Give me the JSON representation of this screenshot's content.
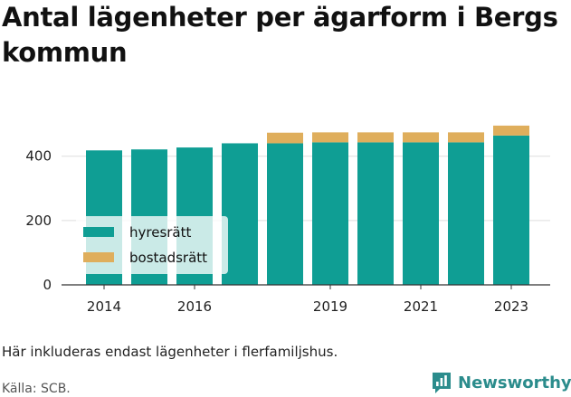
{
  "title": "Antal lägenheter per ägarform i Bergs kommun",
  "note": "Här inkluderas endast lägenheter i flerfamiljshus.",
  "source": "Källa: SCB.",
  "brand": {
    "name": "Newsworthy",
    "icon": "newsworthy-logo-icon",
    "color": "#2b8c8c"
  },
  "colors": {
    "hyresratt": "#0f9e94",
    "bostadsratt": "#dfae5c",
    "grid": "#dddddd"
  },
  "chart_data": {
    "type": "bar",
    "stacked": true,
    "title": "Antal lägenheter per ägarform i Bergs kommun",
    "xlabel": "",
    "ylabel": "",
    "categories": [
      "2014",
      "2015",
      "2016",
      "2017",
      "2018",
      "2019",
      "2020",
      "2021",
      "2022",
      "2023"
    ],
    "x_tick_labels": [
      "2014",
      "2016",
      "2019",
      "2021",
      "2023"
    ],
    "y_ticks": [
      0,
      200,
      400
    ],
    "ylim": [
      0,
      520
    ],
    "grid": true,
    "legend_position": "bottom-left",
    "series": [
      {
        "name": "hyresrätt",
        "color": "#0f9e94",
        "values": [
          418,
          421,
          427,
          440,
          440,
          443,
          443,
          443,
          443,
          464
        ]
      },
      {
        "name": "bostadsrätt",
        "color": "#dfae5c",
        "values": [
          0,
          0,
          0,
          0,
          33,
          31,
          31,
          31,
          31,
          31
        ]
      }
    ]
  }
}
